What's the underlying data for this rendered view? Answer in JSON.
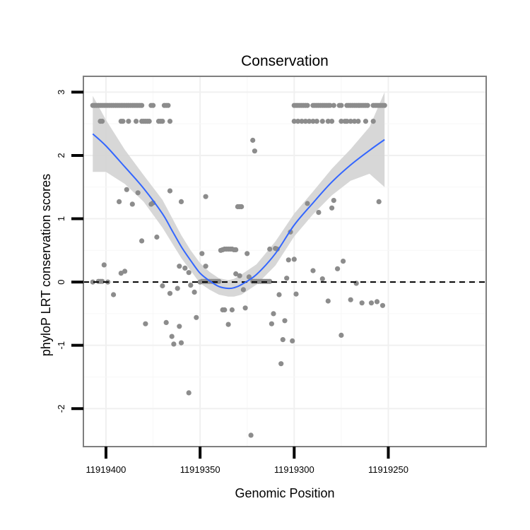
{
  "chart_data": {
    "type": "scatter",
    "title": "Conservation",
    "xlabel": "Genomic Position",
    "ylabel": "phyloP LRT conservation scores",
    "x_reversed": true,
    "xlim": [
      11919412,
      11919198
    ],
    "ylim": [
      -2.6,
      3.25
    ],
    "x_ticks": [
      11919400,
      11919350,
      11919300,
      11919250
    ],
    "x_tick_labels": [
      "11919400",
      "11919350",
      "11919300",
      "11919250"
    ],
    "y_ticks": [
      -2,
      -1,
      0,
      1,
      2,
      3
    ],
    "y_tick_labels": [
      "-2",
      "-1",
      "0",
      "1",
      "2",
      "3"
    ],
    "grid": true,
    "reference_line": {
      "y": 0,
      "style": "dashed",
      "color": "#000000"
    },
    "colors": {
      "points": "#8c8c8c",
      "smooth": "#3366ff",
      "ribbon": "#d3d3d3",
      "frame": "#7f7f7f"
    },
    "points": [
      {
        "x": 11919407,
        "y": 2.79
      },
      {
        "x": 11919406,
        "y": 2.79
      },
      {
        "x": 11919405,
        "y": 2.79
      },
      {
        "x": 11919404,
        "y": 2.79
      },
      {
        "x": 11919403,
        "y": 2.79
      },
      {
        "x": 11919402,
        "y": 2.79
      },
      {
        "x": 11919401,
        "y": 2.79
      },
      {
        "x": 11919400,
        "y": 2.79
      },
      {
        "x": 11919399,
        "y": 2.79
      },
      {
        "x": 11919398,
        "y": 2.79
      },
      {
        "x": 11919397,
        "y": 2.79
      },
      {
        "x": 11919396,
        "y": 2.79
      },
      {
        "x": 11919395,
        "y": 2.79
      },
      {
        "x": 11919394,
        "y": 2.79
      },
      {
        "x": 11919393,
        "y": 2.79
      },
      {
        "x": 11919392,
        "y": 2.79
      },
      {
        "x": 11919391,
        "y": 2.79
      },
      {
        "x": 11919390,
        "y": 2.79
      },
      {
        "x": 11919389,
        "y": 2.79
      },
      {
        "x": 11919388,
        "y": 2.79
      },
      {
        "x": 11919387,
        "y": 2.79
      },
      {
        "x": 11919386,
        "y": 2.79
      },
      {
        "x": 11919385,
        "y": 2.79
      },
      {
        "x": 11919384,
        "y": 2.79
      },
      {
        "x": 11919383,
        "y": 2.79
      },
      {
        "x": 11919382,
        "y": 2.79
      },
      {
        "x": 11919381,
        "y": 2.79
      },
      {
        "x": 11919376,
        "y": 2.79
      },
      {
        "x": 11919375,
        "y": 2.79
      },
      {
        "x": 11919369,
        "y": 2.79
      },
      {
        "x": 11919368,
        "y": 2.79
      },
      {
        "x": 11919367,
        "y": 2.79
      },
      {
        "x": 11919403,
        "y": 2.54
      },
      {
        "x": 11919402,
        "y": 2.54
      },
      {
        "x": 11919392,
        "y": 2.54
      },
      {
        "x": 11919391,
        "y": 2.54
      },
      {
        "x": 11919388,
        "y": 2.54
      },
      {
        "x": 11919384,
        "y": 2.54
      },
      {
        "x": 11919381,
        "y": 2.54
      },
      {
        "x": 11919380,
        "y": 2.54
      },
      {
        "x": 11919379,
        "y": 2.54
      },
      {
        "x": 11919378,
        "y": 2.54
      },
      {
        "x": 11919377,
        "y": 2.54
      },
      {
        "x": 11919372,
        "y": 2.54
      },
      {
        "x": 11919371,
        "y": 2.54
      },
      {
        "x": 11919370,
        "y": 2.54
      },
      {
        "x": 11919366,
        "y": 2.54
      },
      {
        "x": 11919393,
        "y": 1.27
      },
      {
        "x": 11919389,
        "y": 1.46
      },
      {
        "x": 11919386,
        "y": 1.23
      },
      {
        "x": 11919383,
        "y": 1.41
      },
      {
        "x": 11919376,
        "y": 1.23
      },
      {
        "x": 11919375,
        "y": 1.25
      },
      {
        "x": 11919366,
        "y": 1.44
      },
      {
        "x": 11919360,
        "y": 1.27
      },
      {
        "x": 11919347,
        "y": 1.35
      },
      {
        "x": 11919381,
        "y": 0.65
      },
      {
        "x": 11919373,
        "y": 0.71
      },
      {
        "x": 11919361,
        "y": 0.25
      },
      {
        "x": 11919358,
        "y": 0.22
      },
      {
        "x": 11919356,
        "y": 0.15
      },
      {
        "x": 11919349,
        "y": 0.45
      },
      {
        "x": 11919347,
        "y": 0.25
      },
      {
        "x": 11919407,
        "y": 0.0
      },
      {
        "x": 11919404,
        "y": 0.01
      },
      {
        "x": 11919403,
        "y": 0.01
      },
      {
        "x": 11919402,
        "y": 0.01
      },
      {
        "x": 11919401,
        "y": 0.27
      },
      {
        "x": 11919399,
        "y": 0.0
      },
      {
        "x": 11919396,
        "y": -0.2
      },
      {
        "x": 11919392,
        "y": 0.14
      },
      {
        "x": 11919390,
        "y": 0.17
      },
      {
        "x": 11919379,
        "y": -0.66
      },
      {
        "x": 11919370,
        "y": -0.06
      },
      {
        "x": 11919368,
        "y": -0.64
      },
      {
        "x": 11919366,
        "y": -0.18
      },
      {
        "x": 11919365,
        "y": -0.86
      },
      {
        "x": 11919364,
        "y": -0.98
      },
      {
        "x": 11919362,
        "y": -0.1
      },
      {
        "x": 11919361,
        "y": -0.7
      },
      {
        "x": 11919360,
        "y": -0.96
      },
      {
        "x": 11919356,
        "y": -1.75
      },
      {
        "x": 11919355,
        "y": -0.05
      },
      {
        "x": 11919353,
        "y": -0.16
      },
      {
        "x": 11919352,
        "y": -0.56
      },
      {
        "x": 11919350,
        "y": 0.0
      },
      {
        "x": 11919349,
        "y": 0.01
      },
      {
        "x": 11919348,
        "y": 0.01
      },
      {
        "x": 11919347,
        "y": 0.01
      },
      {
        "x": 11919346,
        "y": 0.01
      },
      {
        "x": 11919345,
        "y": 0.01
      },
      {
        "x": 11919344,
        "y": 0.01
      },
      {
        "x": 11919343,
        "y": 0.01
      },
      {
        "x": 11919342,
        "y": 0.01
      },
      {
        "x": 11919341,
        "y": 0.01
      },
      {
        "x": 11919340,
        "y": 0.01
      },
      {
        "x": 11919339,
        "y": 0.5
      },
      {
        "x": 11919338,
        "y": 0.51
      },
      {
        "x": 11919337,
        "y": 0.52
      },
      {
        "x": 11919336,
        "y": 0.52
      },
      {
        "x": 11919335,
        "y": 0.52
      },
      {
        "x": 11919334,
        "y": 0.52
      },
      {
        "x": 11919333,
        "y": 0.52
      },
      {
        "x": 11919332,
        "y": 0.51
      },
      {
        "x": 11919331,
        "y": 0.51
      },
      {
        "x": 11919338,
        "y": -0.44
      },
      {
        "x": 11919337,
        "y": -0.44
      },
      {
        "x": 11919335,
        "y": -0.67
      },
      {
        "x": 11919333,
        "y": -0.44
      },
      {
        "x": 11919331,
        "y": 0.13
      },
      {
        "x": 11919329,
        "y": 0.1
      },
      {
        "x": 11919327,
        "y": -0.12
      },
      {
        "x": 11919326,
        "y": -0.41
      },
      {
        "x": 11919325,
        "y": 0.45
      },
      {
        "x": 11919324,
        "y": 0.08
      },
      {
        "x": 11919323,
        "y": -2.42
      },
      {
        "x": 11919330,
        "y": 1.19
      },
      {
        "x": 11919329,
        "y": 1.19
      },
      {
        "x": 11919328,
        "y": 1.19
      },
      {
        "x": 11919322,
        "y": 2.24
      },
      {
        "x": 11919321,
        "y": 2.07
      },
      {
        "x": 11919322,
        "y": 0.01
      },
      {
        "x": 11919321,
        "y": 0.01
      },
      {
        "x": 11919320,
        "y": 0.01
      },
      {
        "x": 11919319,
        "y": 0.01
      },
      {
        "x": 11919318,
        "y": 0.01
      },
      {
        "x": 11919317,
        "y": 0.01
      },
      {
        "x": 11919316,
        "y": 0.01
      },
      {
        "x": 11919315,
        "y": 0.01
      },
      {
        "x": 11919314,
        "y": 0.01
      },
      {
        "x": 11919313,
        "y": 0.01
      },
      {
        "x": 11919313,
        "y": 0.52
      },
      {
        "x": 11919312,
        "y": -0.66
      },
      {
        "x": 11919311,
        "y": -0.5
      },
      {
        "x": 11919310,
        "y": 0.53
      },
      {
        "x": 11919309,
        "y": 0.52
      },
      {
        "x": 11919308,
        "y": -0.2
      },
      {
        "x": 11919307,
        "y": -1.29
      },
      {
        "x": 11919306,
        "y": -0.91
      },
      {
        "x": 11919305,
        "y": -0.61
      },
      {
        "x": 11919304,
        "y": 0.06
      },
      {
        "x": 11919303,
        "y": 0.35
      },
      {
        "x": 11919302,
        "y": 0.79
      },
      {
        "x": 11919301,
        "y": -0.93
      },
      {
        "x": 11919300,
        "y": 0.36
      },
      {
        "x": 11919299,
        "y": -0.19
      },
      {
        "x": 11919293,
        "y": 1.24
      },
      {
        "x": 11919290,
        "y": 0.18
      },
      {
        "x": 11919287,
        "y": 1.1
      },
      {
        "x": 11919285,
        "y": 0.05
      },
      {
        "x": 11919282,
        "y": -0.3
      },
      {
        "x": 11919280,
        "y": 1.17
      },
      {
        "x": 11919279,
        "y": 1.29
      },
      {
        "x": 11919277,
        "y": 0.21
      },
      {
        "x": 11919275,
        "y": -0.84
      },
      {
        "x": 11919274,
        "y": 0.33
      },
      {
        "x": 11919270,
        "y": -0.28
      },
      {
        "x": 11919267,
        "y": -0.02
      },
      {
        "x": 11919264,
        "y": -0.33
      },
      {
        "x": 11919259,
        "y": -0.33
      },
      {
        "x": 11919256,
        "y": -0.31
      },
      {
        "x": 11919255,
        "y": 1.27
      },
      {
        "x": 11919253,
        "y": -0.37
      },
      {
        "x": 11919300,
        "y": 2.79
      },
      {
        "x": 11919299,
        "y": 2.79
      },
      {
        "x": 11919298,
        "y": 2.79
      },
      {
        "x": 11919297,
        "y": 2.79
      },
      {
        "x": 11919296,
        "y": 2.79
      },
      {
        "x": 11919295,
        "y": 2.79
      },
      {
        "x": 11919294,
        "y": 2.79
      },
      {
        "x": 11919293,
        "y": 2.79
      },
      {
        "x": 11919290,
        "y": 2.79
      },
      {
        "x": 11919289,
        "y": 2.79
      },
      {
        "x": 11919288,
        "y": 2.79
      },
      {
        "x": 11919287,
        "y": 2.79
      },
      {
        "x": 11919286,
        "y": 2.79
      },
      {
        "x": 11919285,
        "y": 2.79
      },
      {
        "x": 11919284,
        "y": 2.79
      },
      {
        "x": 11919283,
        "y": 2.79
      },
      {
        "x": 11919282,
        "y": 2.79
      },
      {
        "x": 11919281,
        "y": 2.79
      },
      {
        "x": 11919279,
        "y": 2.79
      },
      {
        "x": 11919276,
        "y": 2.79
      },
      {
        "x": 11919275,
        "y": 2.79
      },
      {
        "x": 11919272,
        "y": 2.79
      },
      {
        "x": 11919271,
        "y": 2.79
      },
      {
        "x": 11919270,
        "y": 2.79
      },
      {
        "x": 11919269,
        "y": 2.79
      },
      {
        "x": 11919268,
        "y": 2.79
      },
      {
        "x": 11919267,
        "y": 2.79
      },
      {
        "x": 11919266,
        "y": 2.79
      },
      {
        "x": 11919265,
        "y": 2.79
      },
      {
        "x": 11919264,
        "y": 2.79
      },
      {
        "x": 11919263,
        "y": 2.79
      },
      {
        "x": 11919262,
        "y": 2.79
      },
      {
        "x": 11919261,
        "y": 2.79
      },
      {
        "x": 11919258,
        "y": 2.79
      },
      {
        "x": 11919257,
        "y": 2.79
      },
      {
        "x": 11919256,
        "y": 2.79
      },
      {
        "x": 11919255,
        "y": 2.79
      },
      {
        "x": 11919254,
        "y": 2.79
      },
      {
        "x": 11919253,
        "y": 2.79
      },
      {
        "x": 11919252,
        "y": 2.79
      },
      {
        "x": 11919300,
        "y": 2.54
      },
      {
        "x": 11919298,
        "y": 2.54
      },
      {
        "x": 11919296,
        "y": 2.54
      },
      {
        "x": 11919294,
        "y": 2.54
      },
      {
        "x": 11919292,
        "y": 2.54
      },
      {
        "x": 11919290,
        "y": 2.54
      },
      {
        "x": 11919288,
        "y": 2.54
      },
      {
        "x": 11919285,
        "y": 2.54
      },
      {
        "x": 11919282,
        "y": 2.54
      },
      {
        "x": 11919280,
        "y": 2.54
      },
      {
        "x": 11919275,
        "y": 2.54
      },
      {
        "x": 11919273,
        "y": 2.54
      },
      {
        "x": 11919272,
        "y": 2.54
      },
      {
        "x": 11919270,
        "y": 2.54
      },
      {
        "x": 11919268,
        "y": 2.54
      },
      {
        "x": 11919266,
        "y": 2.54
      },
      {
        "x": 11919262,
        "y": 2.54
      },
      {
        "x": 11919258,
        "y": 2.54
      }
    ],
    "smooth": {
      "x": [
        11919407,
        11919400,
        11919390,
        11919380,
        11919370,
        11919365,
        11919360,
        11919355,
        11919350,
        11919345,
        11919340,
        11919335,
        11919332,
        11919328,
        11919320,
        11919310,
        11919300,
        11919290,
        11919280,
        11919270,
        11919260,
        11919252
      ],
      "y": [
        2.34,
        2.15,
        1.82,
        1.48,
        1.08,
        0.82,
        0.56,
        0.34,
        0.14,
        0.02,
        -0.07,
        -0.1,
        -0.09,
        -0.04,
        0.12,
        0.45,
        0.9,
        1.25,
        1.58,
        1.85,
        2.08,
        2.25
      ],
      "lower": [
        1.74,
        1.74,
        1.55,
        1.27,
        0.86,
        0.62,
        0.38,
        0.18,
        -0.02,
        -0.12,
        -0.2,
        -0.23,
        -0.23,
        -0.2,
        -0.04,
        0.26,
        0.72,
        1.07,
        1.37,
        1.6,
        1.71,
        1.5
      ],
      "upper": [
        2.94,
        2.56,
        2.09,
        1.69,
        1.3,
        1.02,
        0.74,
        0.5,
        0.3,
        0.16,
        0.06,
        0.03,
        0.05,
        0.12,
        0.28,
        0.64,
        1.08,
        1.43,
        1.79,
        2.1,
        2.45,
        3.0
      ]
    }
  }
}
